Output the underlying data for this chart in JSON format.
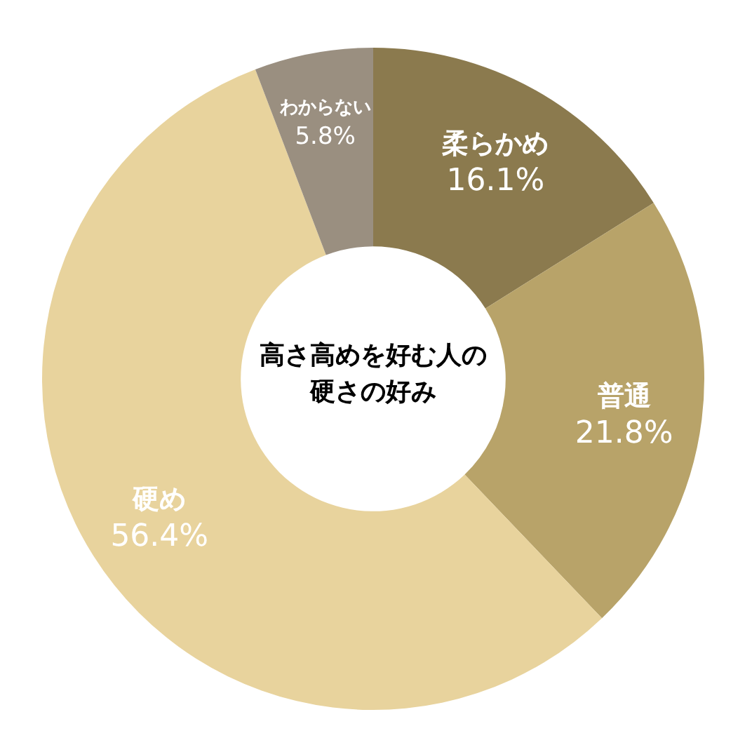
{
  "chart_data": {
    "type": "donut",
    "title": "高さ高めを好む人の硬さの好み",
    "categories": [
      "柔らかめ",
      "普通",
      "硬め",
      "わからない"
    ],
    "values": [
      16.1,
      21.8,
      56.4,
      5.8
    ],
    "value_labels": [
      "16.1%",
      "21.8%",
      "56.4%",
      "5.8%"
    ],
    "colors": [
      "#8b7a4e",
      "#b8a369",
      "#e8d39d",
      "#9a8f80"
    ]
  }
}
